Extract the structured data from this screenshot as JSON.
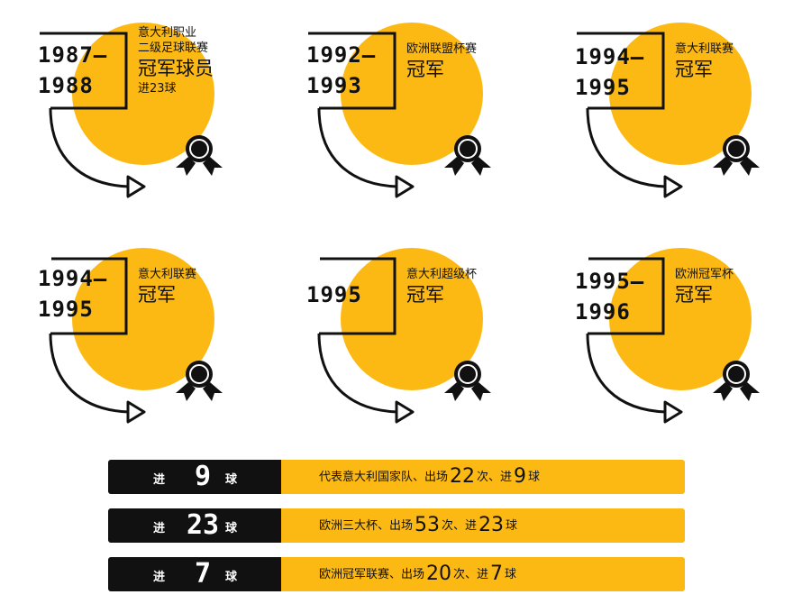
{
  "cards": [
    {
      "year_line1": "1987—",
      "year_line2": "1988",
      "desc_lines": [
        "意大利职业",
        "二级足球联赛"
      ],
      "title": "冠军球员",
      "extra": "进23球"
    },
    {
      "year_line1": "1992—",
      "year_line2": "1993",
      "desc_lines": [
        "欧洲联盟杯赛"
      ],
      "title": "冠军",
      "extra": ""
    },
    {
      "year_line1": "1994—",
      "year_line2": "1995",
      "desc_lines": [
        "意大利联赛"
      ],
      "title": "冠军",
      "extra": ""
    },
    {
      "year_line1": "1994—",
      "year_line2": "1995",
      "desc_lines": [
        "意大利联赛"
      ],
      "title": "冠军",
      "extra": ""
    },
    {
      "year_line1": "1995",
      "year_line2": "",
      "desc_lines": [
        "意大利超级杯"
      ],
      "title": "冠军",
      "extra": ""
    },
    {
      "year_line1": "1995—",
      "year_line2": "1996",
      "desc_lines": [
        "欧洲冠军杯"
      ],
      "title": "冠军",
      "extra": ""
    }
  ],
  "stats": [
    {
      "label_pre": "进",
      "count": "9",
      "label_post": "球",
      "text_pre": "代表意大利国家队、出场",
      "apps": "22",
      "text_mid": "次、进",
      "goals": "9",
      "text_post": "球"
    },
    {
      "label_pre": "进",
      "count": "23",
      "label_post": "球",
      "text_pre": "欧洲三大杯、出场",
      "apps": "53",
      "text_mid": "次、进",
      "goals": "23",
      "text_post": "球"
    },
    {
      "label_pre": "进",
      "count": "7",
      "label_post": "球",
      "text_pre": "欧洲冠军联赛、出场",
      "apps": "20",
      "text_mid": "次、进",
      "goals": "7",
      "text_post": "球"
    }
  ],
  "colors": {
    "accent": "#FDB913",
    "dark": "#111111"
  },
  "icons": {
    "card_icon": "medal-ribbon-icon",
    "card_arrow": "curved-arrow-icon"
  }
}
